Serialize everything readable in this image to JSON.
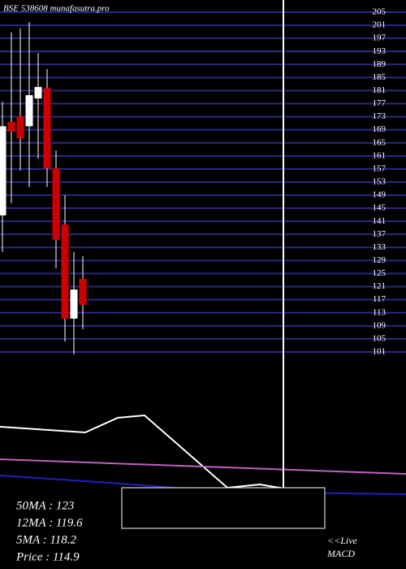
{
  "chart_data": {
    "type": "candlestick",
    "title": "BSE 538608 munafasutra.pro",
    "candles": [
      {
        "open": 142.8,
        "high": 177.6,
        "low": 131.6,
        "close": 170.1
      },
      {
        "open": 171.4,
        "high": 198.8,
        "low": 146.5,
        "close": 168.4
      },
      {
        "open": 173.1,
        "high": 200,
        "low": 156.5,
        "close": 166.4
      },
      {
        "open": 170.1,
        "high": 202,
        "low": 151.5,
        "close": 179.6
      },
      {
        "open": 178.6,
        "high": 192.5,
        "low": 160.2,
        "close": 182.1
      },
      {
        "open": 181.8,
        "high": 187.6,
        "low": 151.5,
        "close": 157.2
      },
      {
        "open": 157.2,
        "high": 162.7,
        "low": 126.6,
        "close": 135.3
      },
      {
        "open": 140,
        "high": 149,
        "low": 104.2,
        "close": 111.2
      },
      {
        "open": 111.2,
        "high": 131.6,
        "low": 100.2,
        "close": 120.1
      },
      {
        "open": 123.4,
        "high": 130.3,
        "low": 108,
        "close": 115.4
      }
    ],
    "up_color": "#ffffff",
    "down_color": "#cc0000",
    "grid_color": "#2a2a88",
    "ylim": [
      100,
      205
    ],
    "yticks": [
      205,
      201,
      197,
      193,
      189,
      185,
      181,
      177,
      173,
      169,
      165,
      161,
      157,
      153,
      149,
      145,
      141,
      137,
      133,
      129,
      125,
      121,
      117,
      113,
      109,
      105,
      101
    ],
    "grid": true
  },
  "indicators": [
    "50MA : 123",
    "12MA : 119.6",
    "5MA : 118.2",
    "Price   : 114.9"
  ],
  "links": [
    "<<Live",
    "MACD"
  ]
}
